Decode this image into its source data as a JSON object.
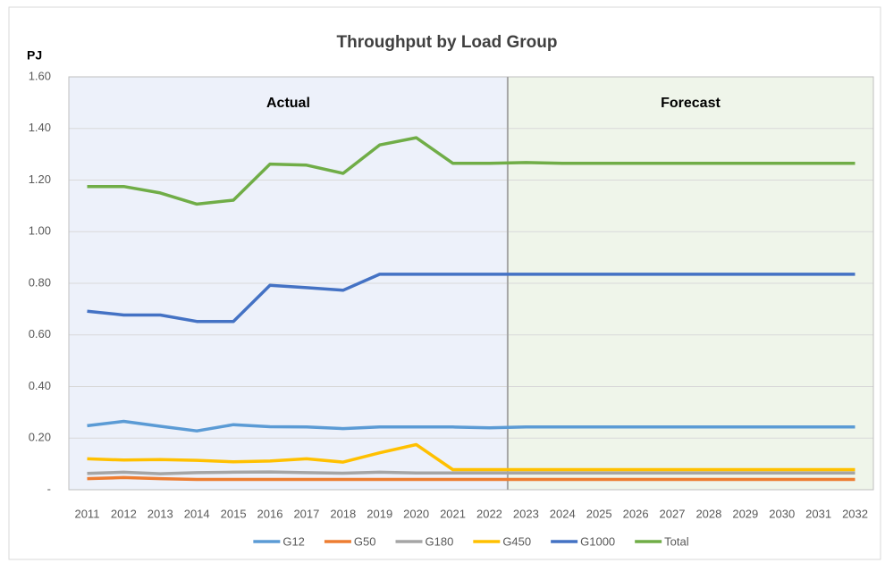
{
  "chart_data": {
    "type": "line",
    "title": "Throughput by Load Group",
    "y_label": "PJ",
    "annotations": [
      "Actual",
      "Forecast"
    ],
    "categories": [
      "2011",
      "2012",
      "2013",
      "2014",
      "2015",
      "2016",
      "2017",
      "2018",
      "2019",
      "2020",
      "2021",
      "2022",
      "2023",
      "2024",
      "2025",
      "2026",
      "2027",
      "2028",
      "2029",
      "2030",
      "2031",
      "2032"
    ],
    "ylim": [
      0,
      1.6
    ],
    "yticks": [
      {
        "value": 0,
        "label": "-"
      },
      {
        "value": 0.2,
        "label": "0.20"
      },
      {
        "value": 0.4,
        "label": "0.40"
      },
      {
        "value": 0.6,
        "label": "0.60"
      },
      {
        "value": 0.8,
        "label": "0.80"
      },
      {
        "value": 1.0,
        "label": "1.00"
      },
      {
        "value": 1.2,
        "label": "1.20"
      },
      {
        "value": 1.4,
        "label": "1.40"
      },
      {
        "value": 1.6,
        "label": "1.60"
      }
    ],
    "grid": true,
    "legend": "bottom",
    "series": [
      {
        "name": "G12",
        "color": "#5b9bd5",
        "values": [
          0.248,
          0.265,
          0.246,
          0.228,
          0.252,
          0.244,
          0.243,
          0.237,
          0.243,
          0.243,
          0.243,
          0.24,
          0.243,
          0.243,
          0.243,
          0.243,
          0.243,
          0.243,
          0.243,
          0.243,
          0.243,
          0.243
        ]
      },
      {
        "name": "G50",
        "color": "#ed7d31",
        "values": [
          0.043,
          0.047,
          0.043,
          0.04,
          0.04,
          0.04,
          0.04,
          0.04,
          0.04,
          0.04,
          0.04,
          0.04,
          0.04,
          0.04,
          0.04,
          0.04,
          0.04,
          0.04,
          0.04,
          0.04,
          0.04,
          0.04
        ]
      },
      {
        "name": "G180",
        "color": "#a5a5a5",
        "values": [
          0.063,
          0.068,
          0.062,
          0.066,
          0.068,
          0.069,
          0.066,
          0.064,
          0.068,
          0.065,
          0.065,
          0.065,
          0.065,
          0.065,
          0.065,
          0.065,
          0.065,
          0.065,
          0.065,
          0.065,
          0.065,
          0.065
        ]
      },
      {
        "name": "G450",
        "color": "#ffc000",
        "values": [
          0.12,
          0.115,
          0.117,
          0.114,
          0.108,
          0.111,
          0.12,
          0.107,
          0.143,
          0.175,
          0.078,
          0.078,
          0.078,
          0.078,
          0.078,
          0.078,
          0.078,
          0.078,
          0.078,
          0.078,
          0.078,
          0.078
        ]
      },
      {
        "name": "G1000",
        "color": "#4472c4",
        "values": [
          0.692,
          0.677,
          0.677,
          0.652,
          0.652,
          0.792,
          0.783,
          0.773,
          0.835,
          0.835,
          0.835,
          0.835,
          0.835,
          0.835,
          0.835,
          0.835,
          0.835,
          0.835,
          0.835,
          0.835,
          0.835,
          0.835
        ]
      },
      {
        "name": "Total",
        "color": "#70ad47",
        "values": [
          1.175,
          1.175,
          1.15,
          1.107,
          1.122,
          1.262,
          1.258,
          1.226,
          1.336,
          1.364,
          1.265,
          1.265,
          1.268,
          1.265,
          1.265,
          1.265,
          1.265,
          1.265,
          1.265,
          1.265,
          1.265,
          1.265
        ]
      }
    ]
  }
}
